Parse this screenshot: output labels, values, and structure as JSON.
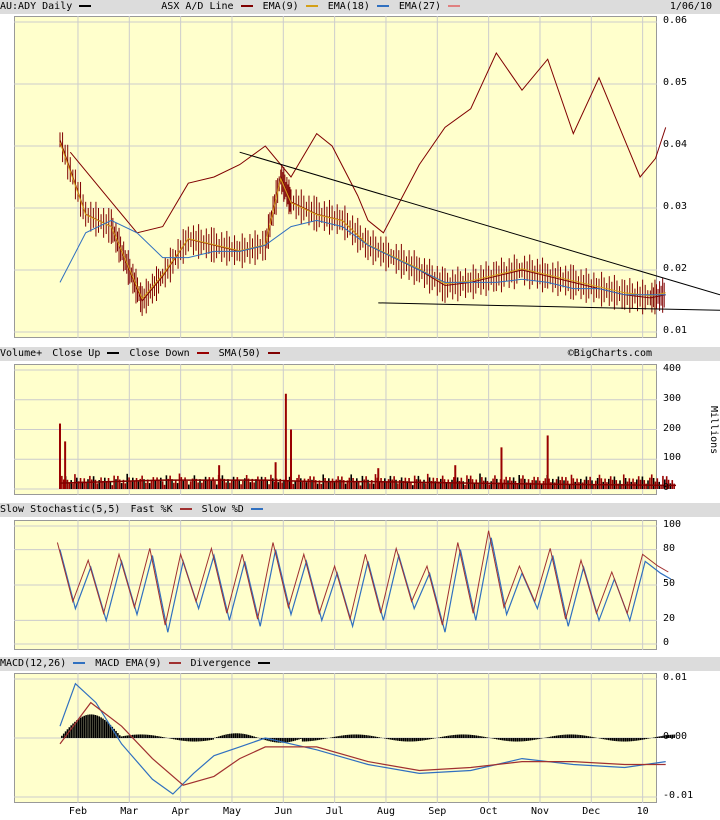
{
  "price_header": {
    "symbol_label": "AU:ADY Daily",
    "ad_label": "ASX A/D Line",
    "ema9_label": "EMA(9)",
    "ema18_label": "EMA(18)",
    "ema27_label": "EMA(27)",
    "date": "1/06/10"
  },
  "volume_header": {
    "volume_label": "Volume+",
    "close_up_label": "Close Up",
    "close_down_label": "Close Down",
    "sma_label": "SMA(50)",
    "credit": "©BigCharts.com",
    "units": "Millions"
  },
  "stoch_header": {
    "label": "Slow Stochastic(5,5)",
    "fast_label": "Fast %K",
    "slow_label": "Slow %D"
  },
  "macd_header": {
    "label": "MACD(12,26)",
    "ema_label": "MACD EMA(9)",
    "div_label": "Divergence"
  },
  "colors": {
    "ad_line": "#800000",
    "ema9": "#800000",
    "ema18": "#d4a017",
    "ema27": "#3070c0",
    "stoch_fast": "#a03030",
    "stoch_slow": "#3070c0",
    "bar": "#800000",
    "up": "#000000",
    "down": "#990000",
    "frame_bg": "#ffffcc"
  },
  "x_labels": [
    "Feb",
    "Mar",
    "Apr",
    "May",
    "Jun",
    "Jul",
    "Aug",
    "Sep",
    "Oct",
    "Nov",
    "Dec",
    "10"
  ],
  "chart_data": [
    {
      "type": "line",
      "panel": "price",
      "ylim": [
        0.01,
        0.06
      ],
      "yticks": [
        "0.06",
        "0.05",
        "0.04",
        "0.03",
        "0.02",
        "0.01"
      ],
      "trendlines": [
        {
          "from": [
            "May",
            0.039
          ],
          "to": [
            "Jan 2010",
            0.016
          ]
        },
        {
          "from": [
            "Aug",
            0.0147
          ],
          "to": [
            "Jan 2010",
            0.0135
          ]
        }
      ],
      "series": [
        {
          "key": "price",
          "months": [
            0,
            0.5,
            1,
            1.3,
            1.6,
            2,
            2.5,
            3,
            3.5,
            4,
            4.3,
            4.5,
            5,
            5.5,
            6,
            6.5,
            7,
            7.5,
            8,
            8.5,
            9,
            9.5,
            10,
            10.5,
            11,
            11.5,
            11.8
          ],
          "values": [
            0.041,
            0.029,
            0.027,
            0.021,
            0.015,
            0.019,
            0.025,
            0.024,
            0.023,
            0.024,
            0.035,
            0.031,
            0.029,
            0.028,
            0.024,
            0.022,
            0.02,
            0.0175,
            0.018,
            0.019,
            0.02,
            0.019,
            0.018,
            0.017,
            0.016,
            0.0155,
            0.016
          ]
        },
        {
          "key": "ad",
          "months": [
            0.2,
            1,
            1.5,
            2,
            2.5,
            3,
            3.5,
            4,
            4.5,
            5,
            5.3,
            5.8,
            6,
            6.3,
            7,
            7.5,
            8,
            8.5,
            9,
            9.5,
            10,
            10.5,
            11,
            11.3,
            11.6,
            11.8
          ],
          "values": [
            0.039,
            0.031,
            0.026,
            0.027,
            0.034,
            0.035,
            0.037,
            0.04,
            0.035,
            0.042,
            0.04,
            0.032,
            0.028,
            0.026,
            0.037,
            0.043,
            0.046,
            0.055,
            0.049,
            0.054,
            0.042,
            0.051,
            0.041,
            0.035,
            0.038,
            0.043
          ]
        },
        {
          "key": "ema27",
          "months": [
            0,
            0.5,
            1,
            1.5,
            2,
            2.5,
            3,
            3.5,
            4,
            4.5,
            5,
            5.5,
            6,
            6.5,
            7,
            7.5,
            8,
            8.5,
            9,
            9.5,
            10,
            10.5,
            11,
            11.5,
            11.8
          ],
          "values": [
            0.018,
            0.026,
            0.028,
            0.026,
            0.022,
            0.022,
            0.023,
            0.023,
            0.024,
            0.027,
            0.028,
            0.027,
            0.024,
            0.022,
            0.02,
            0.018,
            0.018,
            0.018,
            0.0185,
            0.018,
            0.017,
            0.017,
            0.016,
            0.016,
            0.016
          ]
        }
      ]
    },
    {
      "type": "bar",
      "panel": "volume",
      "ylim": [
        0,
        400
      ],
      "yticks": [
        "400",
        "300",
        "200",
        "100",
        "0"
      ],
      "spikes": [
        {
          "month": 0.0,
          "value": 220
        },
        {
          "month": 0.1,
          "value": 160
        },
        {
          "month": 4.4,
          "value": 320
        },
        {
          "month": 4.5,
          "value": 200
        },
        {
          "month": 4.2,
          "value": 90
        },
        {
          "month": 8.6,
          "value": 140
        },
        {
          "month": 9.5,
          "value": 180
        },
        {
          "month": 7.7,
          "value": 80
        },
        {
          "month": 3.1,
          "value": 80
        },
        {
          "month": 6.2,
          "value": 70
        }
      ],
      "sma": {
        "months": [
          0,
          2,
          4,
          5,
          6,
          8,
          10,
          12
        ],
        "values": [
          20,
          30,
          30,
          25,
          25,
          20,
          15,
          12
        ]
      }
    },
    {
      "type": "line",
      "panel": "stochastic",
      "ylim": [
        0,
        100
      ],
      "yticks": [
        "100",
        "80",
        "50",
        "20",
        "0"
      ],
      "series": [
        {
          "key": "slow",
          "months": [
            0,
            0.3,
            0.6,
            0.9,
            1.2,
            1.5,
            1.8,
            2.1,
            2.4,
            2.7,
            3,
            3.3,
            3.6,
            3.9,
            4.2,
            4.5,
            4.8,
            5.1,
            5.4,
            5.7,
            6,
            6.3,
            6.6,
            6.9,
            7.2,
            7.5,
            7.8,
            8.1,
            8.4,
            8.7,
            9,
            9.3,
            9.6,
            9.9,
            10.2,
            10.5,
            10.8,
            11.1,
            11.4,
            11.7,
            11.9
          ],
          "values": [
            80,
            30,
            65,
            20,
            70,
            25,
            75,
            10,
            70,
            30,
            75,
            20,
            70,
            15,
            80,
            25,
            70,
            20,
            60,
            15,
            70,
            20,
            75,
            30,
            60,
            10,
            80,
            20,
            90,
            25,
            60,
            30,
            75,
            15,
            65,
            20,
            55,
            20,
            70,
            60,
            55
          ]
        }
      ]
    },
    {
      "type": "line",
      "panel": "macd",
      "ylim": [
        -0.01,
        0.01
      ],
      "yticks": [
        "0.01",
        "0.00",
        "-0.01"
      ],
      "series": [
        {
          "key": "macd",
          "months": [
            0,
            0.3,
            0.7,
            1.2,
            1.8,
            2.2,
            2.6,
            3,
            3.5,
            4,
            5,
            6,
            7,
            8,
            9,
            10,
            11,
            11.8
          ],
          "values": [
            0.002,
            0.0092,
            0.006,
            -0.001,
            -0.007,
            -0.0095,
            -0.006,
            -0.003,
            -0.0015,
            0.0,
            -0.002,
            -0.0045,
            -0.006,
            -0.0055,
            -0.0035,
            -0.0045,
            -0.005,
            -0.004
          ]
        },
        {
          "key": "ema",
          "months": [
            0,
            0.6,
            1.2,
            1.8,
            2.4,
            3,
            3.5,
            4,
            5,
            6,
            7,
            8,
            9,
            10,
            11,
            11.8
          ],
          "values": [
            -0.001,
            0.006,
            0.002,
            -0.0035,
            -0.008,
            -0.0065,
            -0.0035,
            -0.0015,
            -0.0015,
            -0.004,
            -0.0055,
            -0.005,
            -0.004,
            -0.004,
            -0.0045,
            -0.0045
          ]
        }
      ]
    }
  ]
}
